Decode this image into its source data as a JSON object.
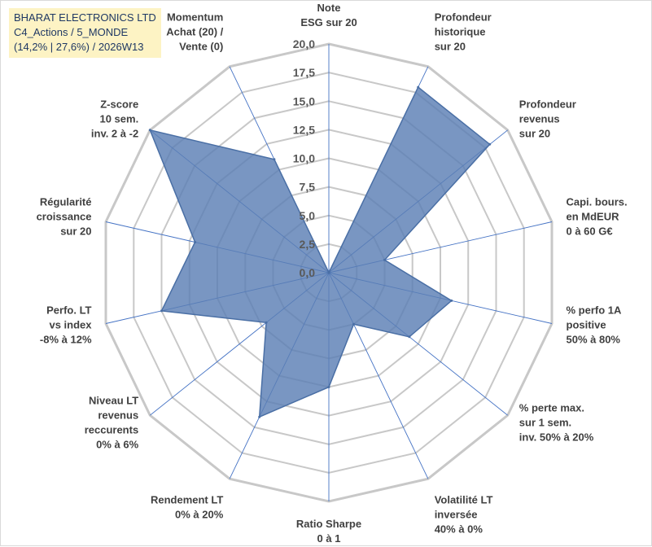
{
  "header": {
    "line1": "BHARAT ELECTRONICS LTD",
    "line2": "C4_Actions / 5_MONDE",
    "line3": "(14,2% | 27,6%) / 2026W13"
  },
  "chart_data": {
    "type": "radar",
    "title": "BHARAT ELECTRONICS LTD",
    "r_range": [
      0,
      20
    ],
    "r_ticks": [
      "0,0",
      "2,5",
      "5,0",
      "7,5",
      "10,0",
      "12,5",
      "15,0",
      "17,5",
      "20,0"
    ],
    "grid": true,
    "axes": [
      {
        "label": [
          "Note",
          "ESG sur 20"
        ],
        "value": 0
      },
      {
        "label": [
          "Profondeur",
          "historique",
          "sur 20"
        ],
        "value": 18
      },
      {
        "label": [
          "Profondeur",
          "revenus",
          "sur 20"
        ],
        "value": 18
      },
      {
        "label": [
          "Capi. bours.",
          "en MdEUR",
          "0 à 60 G€"
        ],
        "value": 5
      },
      {
        "label": [
          "% perfo 1A",
          "positive",
          "50% à 80%"
        ],
        "value": 11
      },
      {
        "label": [
          "% perte max.",
          "sur 1 sem.",
          "inv. 50% à 20%"
        ],
        "value": 9
      },
      {
        "label": [
          "Volatilité LT",
          "inversée",
          "40% à 0%"
        ],
        "value": 5
      },
      {
        "label": [
          "Ratio Sharpe",
          "0 à 1"
        ],
        "value": 10
      },
      {
        "label": [
          "Rendement LT",
          "0% à 20%"
        ],
        "value": 14
      },
      {
        "label": [
          "Niveau LT",
          "revenus",
          "reccurents",
          "0% à 6%"
        ],
        "value": 7
      },
      {
        "label": [
          "Perfo. LT",
          "vs index",
          "-8% à 12%"
        ],
        "value": 15
      },
      {
        "label": [
          "Régularité",
          "croissance",
          "sur 20"
        ],
        "value": 12
      },
      {
        "label": [
          "Z-score",
          "10 sem.",
          "inv. 2 à -2"
        ],
        "value": 20
      },
      {
        "label": [
          "Momentum",
          "Achat (20) /",
          "Vente (0)"
        ],
        "value": 11
      }
    ],
    "colors": {
      "fill": "#5b7fb5",
      "stroke": "#4a6fa5",
      "grid": "#c8c8c8",
      "spoke": "#4472c4"
    }
  }
}
